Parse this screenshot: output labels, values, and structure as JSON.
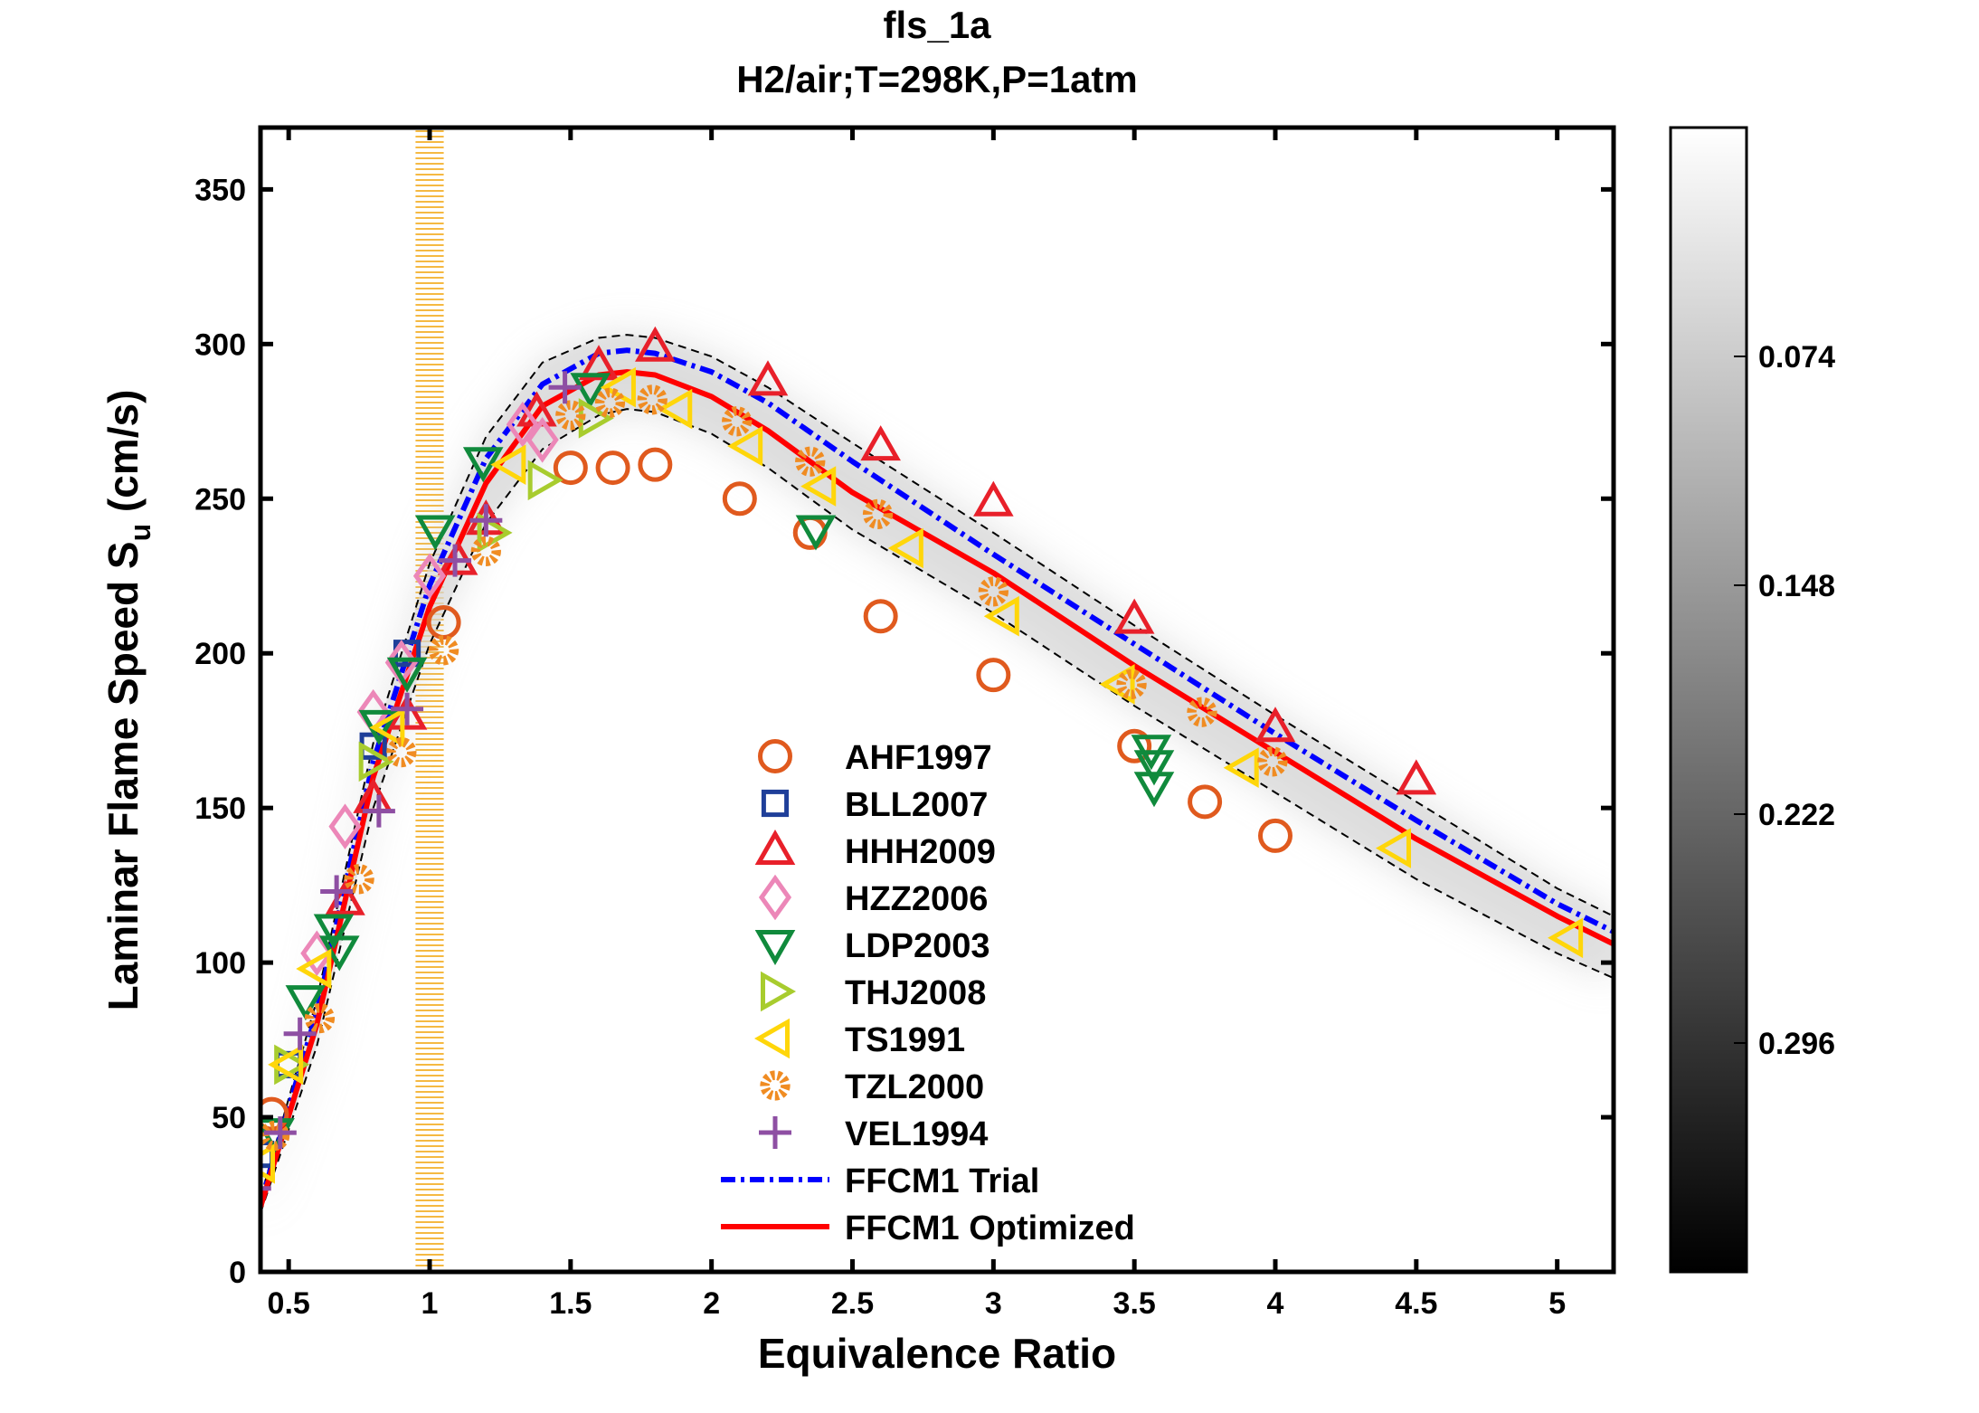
{
  "chart_data": {
    "type": "scatter",
    "title": "fls_1a",
    "subtitle": "H2/air;T=298K,P=1atm",
    "xlabel": "Equivalence Ratio",
    "ylabel": {
      "main": "Laminar Flame Speed S",
      "sub": "u",
      "unit": " (cm/s)"
    },
    "xlim": [
      0.4,
      5.2
    ],
    "ylim": [
      0,
      370
    ],
    "xticks": [
      0.5,
      1,
      1.5,
      2,
      2.5,
      3,
      3.5,
      4,
      4.5,
      5
    ],
    "xtick_labels": [
      "0.5",
      "1",
      "1.5",
      "2",
      "2.5",
      "3",
      "3.5",
      "4",
      "4.5",
      "5"
    ],
    "yticks": [
      0,
      50,
      100,
      150,
      200,
      250,
      300,
      350
    ],
    "ytick_labels": [
      "0",
      "50",
      "100",
      "150",
      "200",
      "250",
      "300",
      "350"
    ],
    "grid": false,
    "legend_placement": "center",
    "highlight_band": {
      "x": [
        0.95,
        1.05
      ],
      "color": "#f5b942"
    },
    "colorbar": {
      "colormap": "gray",
      "ticks": [
        0.074,
        0.148,
        0.222,
        0.296
      ],
      "tick_labels": [
        "0.074",
        "0.148",
        "0.222",
        "0.296"
      ],
      "range": [
        0,
        0.37
      ],
      "direction": "reversed"
    },
    "series": [
      {
        "name": "AHF1997",
        "marker": "circle",
        "color": "#e05a1e",
        "x": [
          0.44,
          1.05,
          1.5,
          1.65,
          1.8,
          2.1,
          2.35,
          2.6,
          3.0,
          3.5,
          3.75,
          4.0
        ],
        "y": [
          51,
          210,
          260,
          260,
          261,
          250,
          239,
          212,
          193,
          170,
          152,
          141
        ]
      },
      {
        "name": "BLL2007",
        "marker": "square",
        "color": "#1f3f99",
        "x": [
          0.4,
          0.5,
          0.8,
          0.92
        ],
        "y": [
          38,
          67,
          170,
          200
        ]
      },
      {
        "name": "HHH2009",
        "marker": "triangle-up",
        "color": "#e8202a",
        "x": [
          0.7,
          0.8,
          0.92,
          1.1,
          1.2,
          1.38,
          1.6,
          1.8,
          2.2,
          2.6,
          3.0,
          3.5,
          4.0,
          4.5
        ],
        "y": [
          120,
          153,
          180,
          230,
          243,
          278,
          293,
          299,
          288,
          267,
          249,
          211,
          176,
          159
        ]
      },
      {
        "name": "HZZ2006",
        "marker": "diamond",
        "color": "#ec87b8",
        "x": [
          0.6,
          0.7,
          0.8,
          0.9,
          1.0,
          1.33,
          1.4
        ],
        "y": [
          103,
          144,
          181,
          197,
          225,
          274,
          269
        ]
      },
      {
        "name": "LDP2003",
        "marker": "triangle-down",
        "color": "#108a3c",
        "x": [
          0.45,
          0.56,
          0.66,
          0.68,
          0.82,
          0.92,
          1.02,
          1.19,
          1.57,
          2.37,
          3.56,
          3.57,
          3.57
        ],
        "y": [
          45,
          88,
          111,
          104,
          177,
          194,
          240,
          262,
          286,
          240,
          169,
          164,
          157
        ]
      },
      {
        "name": "THJ2008",
        "marker": "triangle-right",
        "color": "#a8cc2e",
        "x": [
          0.5,
          0.8,
          1.22,
          1.4,
          1.58
        ],
        "y": [
          67,
          165,
          239,
          256,
          276
        ]
      },
      {
        "name": "TS1991",
        "marker": "triangle-left",
        "color": "#ffd60a",
        "x": [
          0.4,
          0.5,
          0.6,
          0.86,
          1.29,
          1.68,
          1.88,
          2.13,
          2.39,
          2.7,
          3.04,
          3.45,
          3.89,
          4.43,
          5.04
        ],
        "y": [
          35,
          67,
          98,
          176,
          261,
          286,
          279,
          267,
          254,
          234,
          212,
          190,
          163,
          137,
          108
        ]
      },
      {
        "name": "TZL2000",
        "marker": "gear",
        "color": "#f08c22",
        "x": [
          0.45,
          0.61,
          0.75,
          0.9,
          1.05,
          1.2,
          1.5,
          1.64,
          1.79,
          2.09,
          2.35,
          2.59,
          3.0,
          3.49,
          3.74,
          3.99
        ],
        "y": [
          44,
          82,
          127,
          168,
          201,
          233,
          277,
          281,
          282,
          275,
          262,
          245,
          220,
          190,
          181,
          165
        ]
      },
      {
        "name": "VEL1994",
        "marker": "plus",
        "color": "#8e4fa3",
        "x": [
          0.38,
          0.47,
          0.54,
          0.67,
          0.82,
          0.92,
          1.09,
          1.2,
          1.48
        ],
        "y": [
          27,
          45,
          77,
          123,
          149,
          182,
          230,
          243,
          286
        ]
      }
    ],
    "lines": [
      {
        "name": "FFCM1 Trial",
        "style": "dash-dot",
        "color": "#0000ff",
        "x": [
          0.4,
          0.6,
          0.8,
          1.0,
          1.2,
          1.4,
          1.6,
          1.7,
          1.8,
          2.0,
          2.2,
          2.5,
          3.0,
          3.5,
          4.0,
          4.5,
          5.0,
          5.2
        ],
        "y": [
          22,
          84,
          165,
          222,
          263,
          287,
          297,
          298,
          297,
          291,
          281,
          262,
          232,
          203,
          174,
          146,
          119,
          110
        ]
      },
      {
        "name": "FFCM1 Optimized",
        "style": "solid",
        "color": "#ff0000",
        "x": [
          0.4,
          0.6,
          0.8,
          1.0,
          1.2,
          1.4,
          1.6,
          1.7,
          1.8,
          2.0,
          2.2,
          2.5,
          3.0,
          3.5,
          4.0,
          4.5,
          5.0,
          5.2
        ],
        "y": [
          21,
          80,
          160,
          215,
          255,
          280,
          290,
          291,
          290,
          283,
          272,
          252,
          226,
          196,
          168,
          140,
          115,
          106
        ]
      }
    ],
    "uncertainty_bounds": {
      "style": "dashed",
      "color": "#000000",
      "x": [
        0.4,
        0.6,
        0.8,
        1.0,
        1.2,
        1.4,
        1.6,
        1.7,
        1.8,
        2.0,
        2.2,
        2.5,
        3.0,
        3.5,
        4.0,
        4.5,
        5.0,
        5.2
      ],
      "upper": [
        24,
        88,
        171,
        229,
        270,
        294,
        302,
        303,
        302,
        296,
        286,
        268,
        239,
        209,
        180,
        152,
        124,
        115
      ],
      "lower": [
        19,
        73,
        150,
        203,
        242,
        266,
        277,
        279,
        278,
        271,
        260,
        240,
        213,
        183,
        155,
        127,
        103,
        95
      ]
    }
  }
}
